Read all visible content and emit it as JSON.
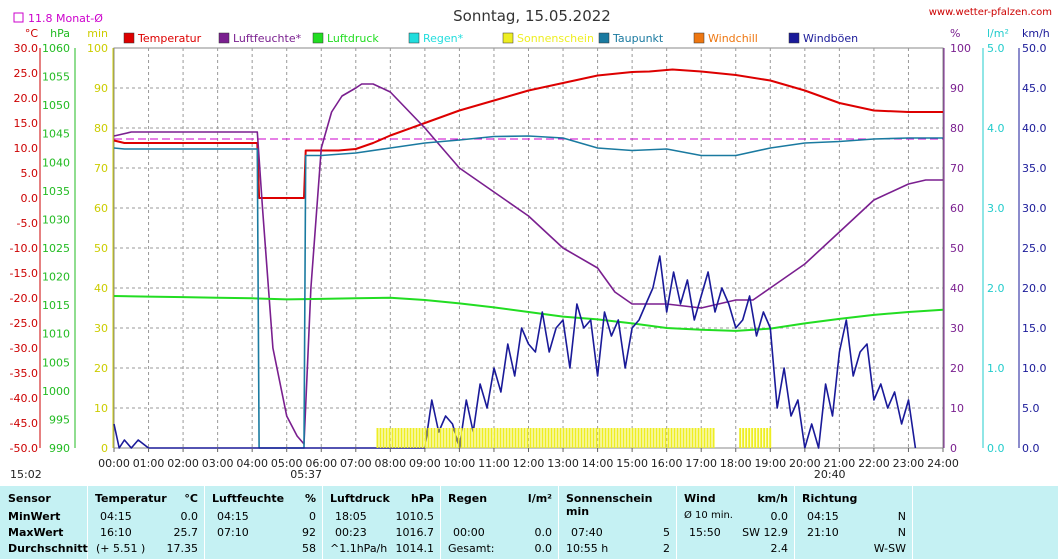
{
  "chart_data": {
    "type": "line",
    "title": "Sonntag, 15.05.2022",
    "site": "www.wetter-pfalzen.com",
    "monthly_avg_label": "11.8 Monat-Ø",
    "monthly_avg_temp": 11.8,
    "units": {
      "temp": "°C",
      "pressure": "hPa",
      "sun": "min",
      "humidity": "%",
      "rain": "l/m²",
      "wind": "km/h"
    },
    "x_ticks": [
      "00:00",
      "01:00",
      "02:00",
      "03:00",
      "04:00",
      "05:00",
      "06:00",
      "07:00",
      "08:00",
      "09:00",
      "10:00",
      "11:00",
      "12:00",
      "13:00",
      "14:00",
      "15:00",
      "16:00",
      "17:00",
      "18:00",
      "19:00",
      "20:00",
      "21:00",
      "22:00",
      "23:00",
      "24:00"
    ],
    "sunrise": "05:37",
    "sunset": "20:40",
    "left_time": "15:02",
    "axes": {
      "temp": {
        "range": [
          -50,
          30
        ],
        "ticks": [
          "30.0",
          "25.0",
          "20.0",
          "15.0",
          "10.0",
          "5.0",
          "0.0",
          "-5.0",
          "-10.0",
          "-15.0",
          "-20.0",
          "-25.0",
          "-30.0",
          "-35.0",
          "-40.0",
          "-45.0",
          "-50.0"
        ]
      },
      "pressure": {
        "range": [
          990,
          1060
        ],
        "ticks": [
          "1060",
          "1055",
          "1050",
          "1045",
          "1040",
          "1035",
          "1030",
          "1025",
          "1020",
          "1015",
          "1010",
          "1005",
          "1000",
          "995",
          "990"
        ]
      },
      "sun": {
        "range": [
          0,
          100
        ],
        "ticks": [
          "100",
          "90",
          "80",
          "70",
          "60",
          "50",
          "40",
          "30",
          "20",
          "10",
          "0"
        ]
      },
      "humidity": {
        "range": [
          0,
          100
        ],
        "ticks": [
          "100",
          "90",
          "80",
          "70",
          "60",
          "50",
          "40",
          "30",
          "20",
          "10",
          "0"
        ]
      },
      "rain": {
        "range": [
          0,
          5
        ],
        "ticks": [
          "5.0",
          "4.0",
          "3.0",
          "2.0",
          "1.0",
          "0.0"
        ]
      },
      "wind": {
        "range": [
          0,
          50
        ],
        "ticks": [
          "50.0",
          "45.0",
          "40.0",
          "35.0",
          "30.0",
          "25.0",
          "20.0",
          "15.0",
          "10.0",
          "5.0",
          "0.0"
        ]
      }
    },
    "legend": [
      {
        "name": "Temperatur",
        "color": "#dd0000"
      },
      {
        "name": "Luftfeuchte*",
        "color": "#7a1f8f"
      },
      {
        "name": "Luftdruck",
        "color": "#22dd22"
      },
      {
        "name": "Regen*",
        "color": "#22dddd"
      },
      {
        "name": "Sonnenschein",
        "color": "#eeee22"
      },
      {
        "name": "Taupunkt",
        "color": "#1a7aa0"
      },
      {
        "name": "Windchill",
        "color": "#ee7711"
      },
      {
        "name": "Windböen",
        "color": "#1a1a99"
      }
    ],
    "series": [
      {
        "name": "Temperatur",
        "axis": "temp",
        "x": [
          0,
          0.3,
          4.15,
          4.2,
          5.5,
          5.55,
          6.5,
          7.0,
          7.5,
          8.0,
          9.0,
          10.0,
          11.0,
          12.0,
          13.0,
          14.0,
          15.0,
          15.5,
          16.17,
          17.0,
          18.0,
          19.0,
          20.0,
          21.0,
          22.0,
          23.0,
          24.0
        ],
        "y": [
          11.5,
          11.0,
          11.0,
          0.0,
          0.0,
          9.5,
          9.5,
          9.8,
          11.0,
          12.5,
          15.0,
          17.5,
          19.5,
          21.5,
          23.0,
          24.5,
          25.2,
          25.3,
          25.7,
          25.3,
          24.6,
          23.5,
          21.5,
          19.0,
          17.5,
          17.2,
          17.2
        ]
      },
      {
        "name": "Luftfeuchte*",
        "axis": "humidity",
        "x": [
          0,
          0.5,
          4.15,
          4.3,
          4.6,
          5.0,
          5.3,
          5.5,
          5.7,
          6.0,
          6.3,
          6.6,
          7.0,
          7.17,
          7.5,
          8.0,
          9.0,
          10.0,
          11.0,
          12.0,
          13.0,
          14.0,
          14.5,
          15.0,
          16.0,
          17.0,
          18.0,
          18.5,
          19.0,
          20.0,
          21.0,
          22.0,
          23.0,
          23.5,
          24.0
        ],
        "y": [
          78,
          79,
          79,
          60,
          25,
          8,
          3,
          1,
          40,
          75,
          84,
          88,
          90,
          91,
          91,
          89,
          80,
          70,
          64,
          58,
          50,
          45,
          39,
          36,
          36,
          35,
          37,
          37,
          40,
          46,
          54,
          62,
          66,
          67,
          67
        ]
      },
      {
        "name": "Luftdruck",
        "axis": "pressure",
        "x": [
          0,
          1,
          2,
          3,
          4,
          5,
          6,
          7,
          8,
          9,
          10,
          11,
          12,
          13,
          14,
          15,
          16,
          17,
          18,
          19,
          20,
          21,
          22,
          23,
          24
        ],
        "y": [
          1016.6,
          1016.5,
          1016.4,
          1016.3,
          1016.2,
          1016.0,
          1016.1,
          1016.2,
          1016.3,
          1015.9,
          1015.3,
          1014.6,
          1013.8,
          1013.0,
          1012.5,
          1011.8,
          1011.0,
          1010.7,
          1010.5,
          1010.9,
          1011.8,
          1012.6,
          1013.3,
          1013.8,
          1014.2
        ]
      },
      {
        "name": "Taupunkt",
        "axis": "temp",
        "x": [
          0,
          0.3,
          4.15,
          4.2,
          5.5,
          5.55,
          6.0,
          7.0,
          8.0,
          9.0,
          10.0,
          11.0,
          12.0,
          13.0,
          14.0,
          15.0,
          16.0,
          17.0,
          18.0,
          19.0,
          20.0,
          21.0,
          22.0,
          23.0,
          24.0
        ],
        "y": [
          10.0,
          9.8,
          9.8,
          -50,
          -50,
          8.5,
          8.5,
          9.0,
          10.0,
          11.0,
          11.6,
          12.3,
          12.4,
          12.0,
          10.0,
          9.5,
          9.8,
          8.5,
          8.5,
          10.0,
          11.0,
          11.3,
          11.8,
          12.0,
          12.0
        ]
      },
      {
        "name": "Windböen",
        "axis": "wind",
        "x": [
          0,
          0.15,
          0.3,
          0.5,
          0.7,
          1.0,
          9.0,
          9.2,
          9.4,
          9.6,
          9.8,
          10.0,
          10.2,
          10.4,
          10.6,
          10.8,
          11.0,
          11.2,
          11.4,
          11.6,
          11.8,
          12.0,
          12.2,
          12.4,
          12.6,
          12.8,
          13.0,
          13.2,
          13.4,
          13.6,
          13.8,
          14.0,
          14.2,
          14.4,
          14.6,
          14.8,
          15.0,
          15.2,
          15.4,
          15.6,
          15.8,
          16.0,
          16.2,
          16.4,
          16.6,
          16.8,
          17.0,
          17.2,
          17.4,
          17.6,
          17.8,
          18.0,
          18.2,
          18.4,
          18.6,
          18.8,
          19.0,
          19.2,
          19.4,
          19.6,
          19.8,
          20.0,
          20.2,
          20.4,
          20.6,
          20.8,
          21.0,
          21.2,
          21.4,
          21.6,
          21.8,
          22.0,
          22.2,
          22.4,
          22.6,
          22.8,
          23.0,
          23.2
        ],
        "y": [
          3,
          0,
          1,
          0,
          1,
          0,
          0,
          6,
          2,
          4,
          3,
          0,
          6,
          2,
          8,
          5,
          10,
          7,
          13,
          9,
          15,
          13,
          12,
          17,
          12,
          15,
          16,
          10,
          18,
          15,
          16,
          9,
          17,
          14,
          16,
          10,
          15,
          16,
          18,
          20,
          24,
          17,
          22,
          18,
          21,
          16,
          19,
          22,
          17,
          20,
          18,
          15,
          16,
          19,
          14,
          17,
          15,
          5,
          10,
          4,
          6,
          0,
          3,
          0,
          8,
          4,
          12,
          16,
          9,
          12,
          13,
          6,
          8,
          5,
          7,
          3,
          6,
          0
        ]
      },
      {
        "name": "Sonnenschein",
        "axis": "sun",
        "x": [
          7.6,
          17.4,
          17.5,
          17.75,
          17.85,
          18.0,
          18.1,
          19.05
        ],
        "y": [
          5,
          5,
          0,
          5,
          0,
          0,
          5,
          5
        ]
      }
    ],
    "stats": {
      "headers": {
        "sensor": "Sensor",
        "temp": "Temperatur",
        "temp_unit": "°C",
        "hum": "Luftfeuchte",
        "hum_unit": "%",
        "press": "Luftdruck",
        "press_unit": "hPa",
        "rain": "Regen",
        "rain_unit": "l/m²",
        "sun": "Sonnenschein min",
        "wind": "Wind",
        "wind_unit": "km/h",
        "dir": "Richtung"
      },
      "rows": [
        {
          "label": "MinWert",
          "temp_time": "04:15",
          "temp_val": "0.0",
          "hum_time": "04:15",
          "hum_val": "0",
          "press_time": "18:05",
          "press_val": "1010.5",
          "rain_time": "",
          "rain_val": "",
          "sun_time": "",
          "sun_val": "",
          "wind_time": "Ø 10 min.",
          "wind_val": "0.0",
          "dir_time": "04:15",
          "dir_val": "N"
        },
        {
          "label": "MaxWert",
          "temp_time": "16:10",
          "temp_val": "25.7",
          "hum_time": "07:10",
          "hum_val": "92",
          "press_time": "00:23",
          "press_val": "1016.7",
          "rain_time": "00:00",
          "rain_val": "0.0",
          "sun_time": "07:40",
          "sun_val": "5",
          "wind_time": "15:50",
          "wind_val": "SW 12.9",
          "dir_time": "21:10",
          "dir_val": "N"
        },
        {
          "label": "Durchschnitt",
          "temp_time": "(+ 5.51 )",
          "temp_val": "17.35",
          "hum_time": "",
          "hum_val": "58",
          "press_time": "^1.1hPa/h",
          "press_val": "1014.1",
          "rain_time": "Gesamt:",
          "rain_val": "0.0",
          "sun_time": "10:55 h",
          "sun_val": "2",
          "wind_time": "",
          "wind_val": "2.4",
          "dir_time": "",
          "dir_val": "W-SW"
        }
      ]
    }
  }
}
